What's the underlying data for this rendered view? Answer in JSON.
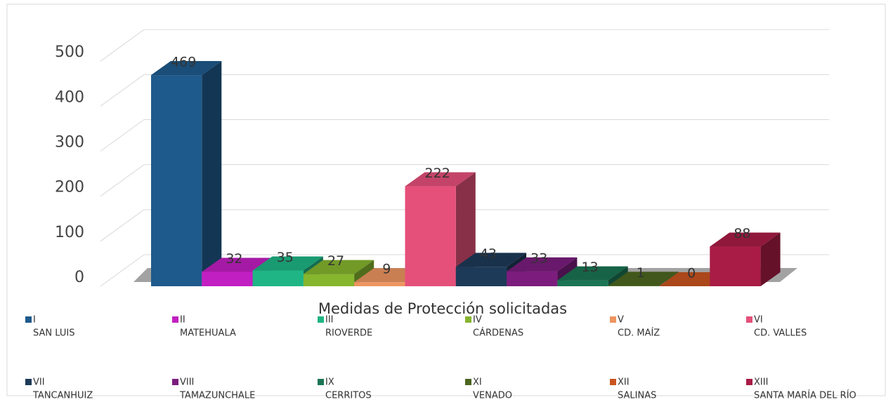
{
  "chart_data": {
    "type": "bar3d",
    "x_label": "Medidas de Protección solicitadas",
    "ylim": [
      0,
      600
    ],
    "yticks": [
      0,
      100,
      200,
      300,
      400,
      500
    ],
    "grid": true,
    "series": [
      {
        "name": "I",
        "region": "SAN LUIS",
        "color": "#1f5a8c",
        "values": [
          469
        ]
      },
      {
        "name": "II",
        "region": "MATEHUALA",
        "color": "#c21fc2",
        "values": [
          32
        ]
      },
      {
        "name": "III",
        "region": "RIOVERDE",
        "color": "#1fb585",
        "values": [
          35
        ]
      },
      {
        "name": "IV",
        "region": "CÁRDENAS",
        "color": "#86b52e",
        "values": [
          27
        ]
      },
      {
        "name": "V",
        "region": "CD. MAÍZ",
        "color": "#ee9560",
        "values": [
          9
        ]
      },
      {
        "name": "VI",
        "region": "CD. VALLES",
        "color": "#e5507a",
        "values": [
          222
        ]
      },
      {
        "name": "VII",
        "region": "TANCANHUIZ",
        "color": "#1d3a58",
        "values": [
          43
        ]
      },
      {
        "name": "VIII",
        "region": "TAMAZUNCHALE",
        "color": "#7c1d7e",
        "values": [
          33
        ]
      },
      {
        "name": "IX",
        "region": "CERRITOS",
        "color": "#1b7554",
        "values": [
          13
        ]
      },
      {
        "name": "XI",
        "region": "VENADO",
        "color": "#4c6620",
        "values": [
          1
        ]
      },
      {
        "name": "XII",
        "region": "SALINAS",
        "color": "#c9541e",
        "values": [
          0
        ]
      },
      {
        "name": "XIII",
        "region": "SANTA MARÍA DEL RÍO",
        "color": "#a81c45",
        "values": [
          88
        ]
      }
    ]
  }
}
